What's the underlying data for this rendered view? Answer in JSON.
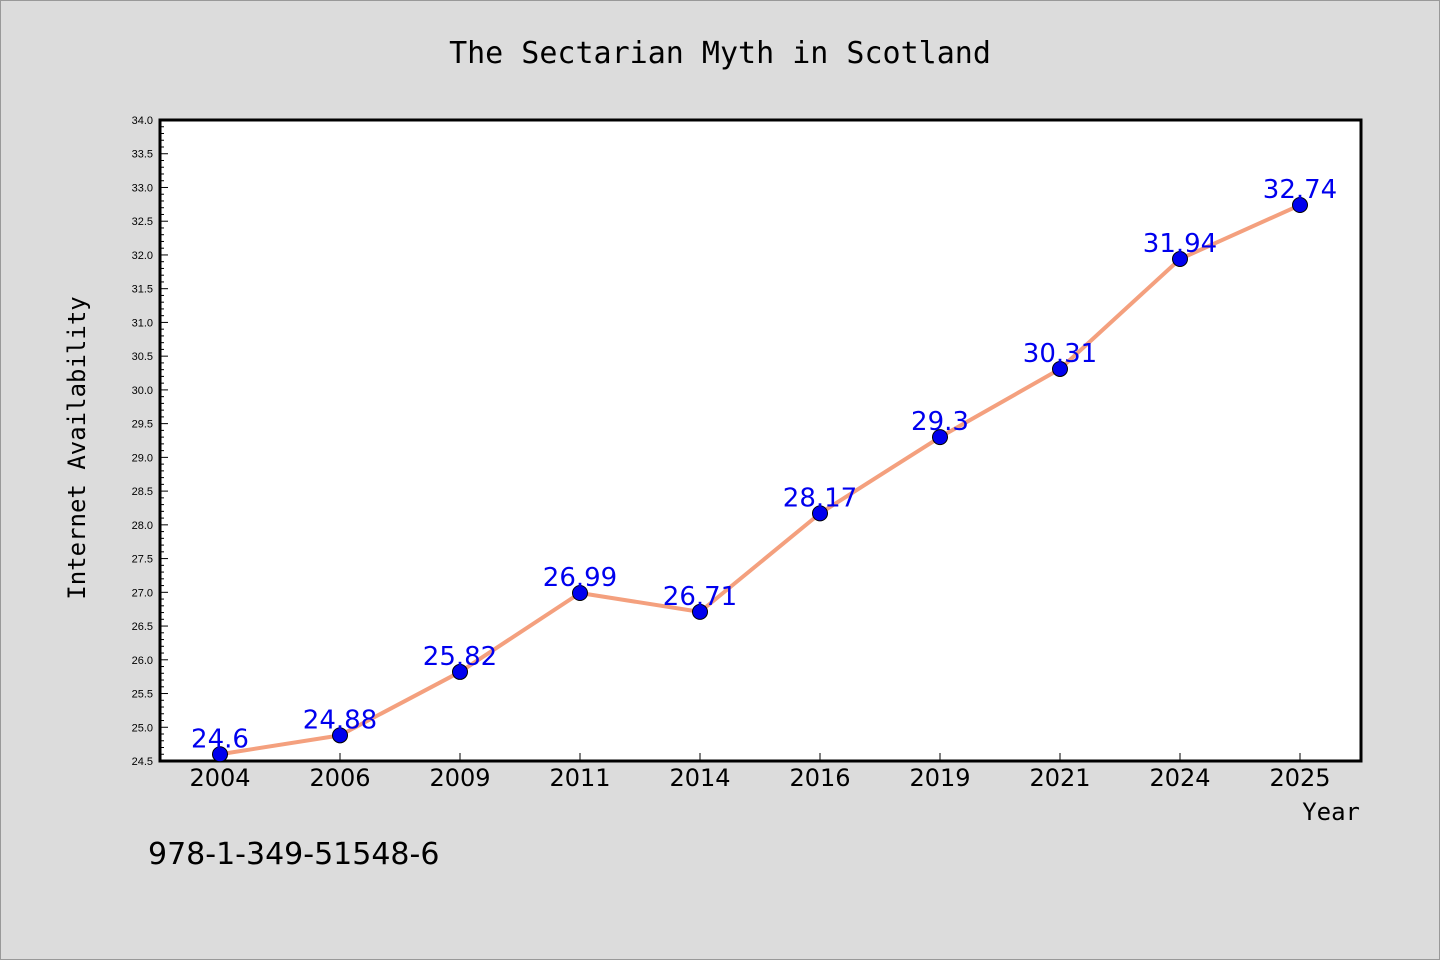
{
  "chart_data": {
    "type": "line",
    "title": "The Sectarian Myth in Scotland",
    "xlabel": "Year",
    "ylabel": "Internet Availability",
    "categories": [
      "2004",
      "2006",
      "2009",
      "2011",
      "2014",
      "2016",
      "2019",
      "2021",
      "2024",
      "2025"
    ],
    "series": [
      {
        "values": [
          24.6,
          24.88,
          25.82,
          26.99,
          26.71,
          28.17,
          29.3,
          30.31,
          31.94,
          32.74
        ],
        "data_labels": [
          "24.6",
          "24.88",
          "25.82",
          "26.99",
          "26.71",
          "28.17",
          "29.3",
          "30.31",
          "31.94",
          "32.74"
        ],
        "line_color": "#f4a07e",
        "marker_color": "#0000ee"
      }
    ],
    "ylim": [
      24.5,
      34.0
    ],
    "yticks": [
      "24.5",
      "25.0",
      "25.5",
      "26.0",
      "26.5",
      "27.0",
      "27.5",
      "28.0",
      "28.5",
      "29.0",
      "29.5",
      "30.0",
      "30.5",
      "31.0",
      "31.5",
      "32.0",
      "32.5",
      "33.0",
      "33.5",
      "34.0"
    ],
    "grid": false,
    "background_color": "#dcdcdc",
    "plot_background_color": "#ffffff"
  },
  "annotation": {
    "isbn": "978-1-349-51548-6"
  }
}
